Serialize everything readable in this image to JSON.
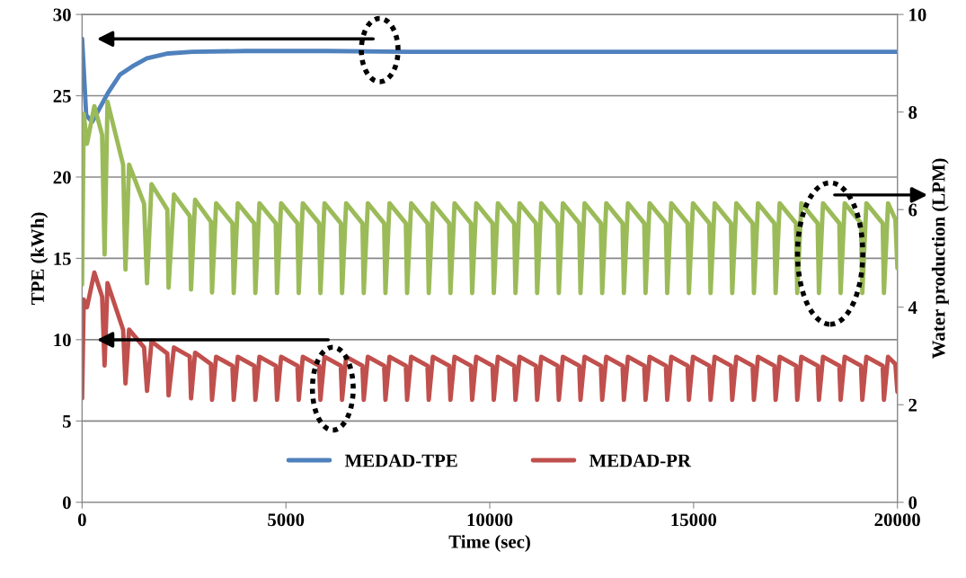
{
  "chart_data": {
    "type": "line",
    "xlabel": "Time (sec)",
    "ylabel": "TPE (kWh)",
    "y2label": "Water production (LPM)",
    "xlim": [
      0,
      20000
    ],
    "xticks": [
      0,
      5000,
      10000,
      15000,
      20000
    ],
    "ylim": [
      0,
      30
    ],
    "yticks": [
      0,
      5,
      10,
      15,
      20,
      25,
      30
    ],
    "y2lim": [
      0,
      10
    ],
    "y2ticks": [
      0,
      2,
      4,
      6,
      8,
      10
    ],
    "grid": "y",
    "legend": "bottom",
    "x": [
      0,
      40,
      120,
      300,
      491,
      551,
      623,
      1006,
      1064,
      1152,
      1520,
      1593,
      1703,
      2090,
      2121,
      2253,
      2640,
      2672,
      2772,
      3160,
      3187,
      3287,
      3687,
      3719,
      3819,
      4219,
      4250,
      4350,
      4750,
      4782,
      4882,
      5282,
      5314,
      5414,
      5814,
      5846,
      5946,
      6346,
      6377,
      6477,
      6877,
      6909,
      7009,
      7409,
      7441,
      7541,
      7941,
      7972,
      8072,
      8472,
      8504,
      8604,
      9004,
      9036,
      9136,
      9536,
      9568,
      9668,
      10068,
      10099,
      10199,
      10599,
      10631,
      10731,
      11131,
      11163,
      11263,
      11663,
      11694,
      11794,
      12194,
      12226,
      12326,
      12726,
      12758,
      12858,
      13258,
      13290,
      13390,
      13790,
      13821,
      13921,
      14321,
      14353,
      14453,
      14853,
      14885,
      14985,
      15385,
      15417,
      15517,
      15917,
      15948,
      16048,
      16448,
      16480,
      16580,
      16980,
      17012,
      17112,
      17512,
      17543,
      17643,
      18043,
      18075,
      18175,
      18575,
      18607,
      18707,
      19107,
      19139,
      19239,
      19639,
      19670,
      19770,
      19950,
      20000
    ],
    "series": [
      {
        "name": "MEDAD-TPE",
        "color": "#4f81bd",
        "x": [
          0,
          100,
          250,
          400,
          640,
          930,
          1230,
          1590,
          2110,
          2700,
          4000,
          6000,
          8000,
          10000,
          12000,
          14000,
          16000,
          18000,
          20000
        ],
        "values": [
          28.5,
          23.8,
          23.4,
          24.1,
          25.2,
          26.3,
          26.8,
          27.3,
          27.6,
          27.7,
          27.75,
          27.75,
          27.7,
          27.7,
          27.7,
          27.7,
          27.7,
          27.7,
          27.7
        ]
      },
      {
        "color": "#9bbb59",
        "axis": "y2",
        "values": [
          4.46,
          7.96,
          7.35,
          8.12,
          7.53,
          5.08,
          8.21,
          6.92,
          4.77,
          6.92,
          6.12,
          4.49,
          6.52,
          6.0,
          4.4,
          6.31,
          5.87,
          4.36,
          6.2,
          5.75,
          4.3,
          6.13,
          5.72,
          4.29,
          6.13,
          5.72,
          4.29,
          6.13,
          5.72,
          4.29,
          6.13,
          5.72,
          4.29,
          6.13,
          5.72,
          4.29,
          6.13,
          5.72,
          4.29,
          6.13,
          5.72,
          4.29,
          6.13,
          5.72,
          4.29,
          6.13,
          5.72,
          4.29,
          6.13,
          5.72,
          4.29,
          6.13,
          5.72,
          4.29,
          6.13,
          5.72,
          4.29,
          6.13,
          5.72,
          4.29,
          6.13,
          5.72,
          4.29,
          6.13,
          5.72,
          4.29,
          6.13,
          5.72,
          4.29,
          6.13,
          5.72,
          4.29,
          6.13,
          5.72,
          4.29,
          6.13,
          5.72,
          4.29,
          6.13,
          5.72,
          4.29,
          6.13,
          5.72,
          4.29,
          6.13,
          5.72,
          4.29,
          6.13,
          5.72,
          4.29,
          6.13,
          5.72,
          4.29,
          6.13,
          5.72,
          4.29,
          6.13,
          5.72,
          4.29,
          6.13,
          5.72,
          4.29,
          6.13,
          5.72,
          4.29,
          6.13,
          5.72,
          4.29,
          6.13,
          5.72,
          4.29,
          6.13,
          5.72,
          4.29,
          6.13,
          5.8,
          4.8
        ]
      },
      {
        "name": "MEDAD-PR",
        "color": "#c0504d",
        "values": [
          6.39,
          12.47,
          12.0,
          14.13,
          12.65,
          8.41,
          13.48,
          10.62,
          7.31,
          10.62,
          9.52,
          6.85,
          9.89,
          9.15,
          6.57,
          9.52,
          8.97,
          6.39,
          9.2,
          8.5,
          6.3,
          8.95,
          8.4,
          6.3,
          8.95,
          8.4,
          6.3,
          8.95,
          8.4,
          6.3,
          8.95,
          8.4,
          6.3,
          8.95,
          8.4,
          6.3,
          8.95,
          8.4,
          6.3,
          8.95,
          8.4,
          6.3,
          8.95,
          8.4,
          6.3,
          8.95,
          8.4,
          6.3,
          8.95,
          8.4,
          6.3,
          8.95,
          8.4,
          6.3,
          8.95,
          8.4,
          6.3,
          8.95,
          8.4,
          6.3,
          8.95,
          8.4,
          6.3,
          8.95,
          8.4,
          6.3,
          8.95,
          8.4,
          6.3,
          8.95,
          8.4,
          6.3,
          8.95,
          8.4,
          6.3,
          8.95,
          8.4,
          6.3,
          8.95,
          8.4,
          6.3,
          8.95,
          8.4,
          6.3,
          8.95,
          8.4,
          6.3,
          8.95,
          8.4,
          6.3,
          8.95,
          8.4,
          6.3,
          8.95,
          8.4,
          6.3,
          8.95,
          8.4,
          6.3,
          8.95,
          8.4,
          6.3,
          8.95,
          8.4,
          6.3,
          8.95,
          8.4,
          6.3,
          8.95,
          8.4,
          6.3,
          8.95,
          8.4,
          6.3,
          8.95,
          8.5,
          6.8
        ]
      }
    ]
  }
}
